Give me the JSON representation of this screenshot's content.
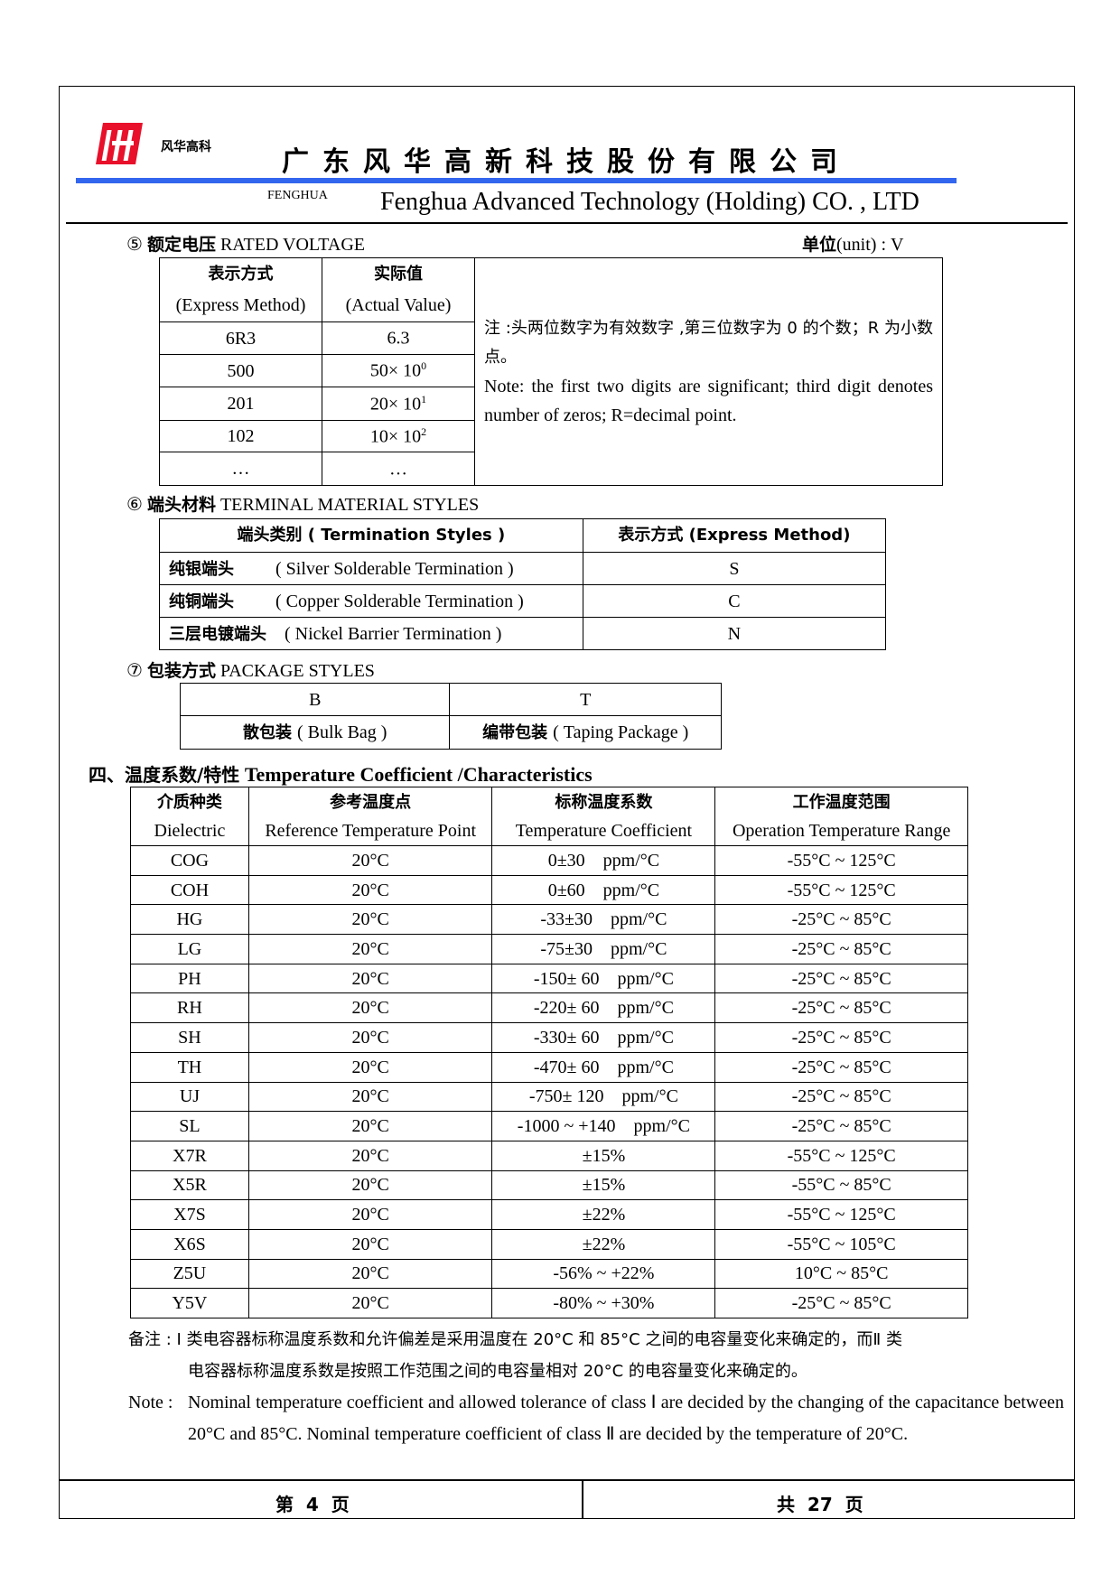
{
  "header": {
    "logo_text": "FH",
    "logo_cn": "风华高科",
    "company_cn": "广东风华高新科技股份有限公司",
    "brand": "FENGHUA",
    "company_en": "Fenghua Advanced Technology (Holding) CO. , LTD",
    "brand_color": "#e8102a",
    "bar_color": "#3366ee"
  },
  "rated_voltage": {
    "number": "⑤",
    "title_cn": "额定电压",
    "title_en": "RATED VOLTAGE",
    "unit_cn": "单位",
    "unit_en": "(unit) : V",
    "headers": [
      [
        "表示方式",
        "(Express Method)"
      ],
      [
        "实际值",
        "(Actual Value)"
      ]
    ],
    "rows": [
      [
        "6R3",
        "6.3",
        ""
      ],
      [
        "500",
        "50× 10",
        "0"
      ],
      [
        "201",
        "20× 10",
        "1"
      ],
      [
        "102",
        "10× 10",
        "2"
      ],
      [
        "…",
        "…",
        ""
      ]
    ],
    "note_cn": "注 :头两位数字为有效数字 ,第三位数字为 0 的个数；R 为小数点。",
    "note_en": "Note: the first two digits are significant; third digit denotes number of zeros; R=decimal point."
  },
  "terminal": {
    "number": "⑥",
    "title_cn": "端头材料",
    "title_en": "TERMINAL MATERIAL STYLES",
    "headers": [
      "端头类别 ( Termination Styles )",
      "表示方式 (Express Method)"
    ],
    "rows": [
      [
        "纯银端头",
        "( Silver Solderable Termination )",
        "S"
      ],
      [
        "纯铜端头",
        "( Copper Solderable Termination )",
        "C"
      ],
      [
        "三层电镀端头",
        "( Nickel Barrier Termination )",
        "N"
      ]
    ]
  },
  "package": {
    "number": "⑦",
    "title_cn": "包装方式",
    "title_en": "PACKAGE STYLES",
    "codes": [
      "B",
      "T"
    ],
    "labels": [
      [
        "散包装",
        "( Bulk Bag )"
      ],
      [
        "编带包装",
        "( Taping Package )"
      ]
    ]
  },
  "temp": {
    "title_cn": "四、温度系数/特性",
    "title_en": "Temperature Coefficient /Characteristics",
    "headers": [
      [
        "介质种类",
        "Dielectric"
      ],
      [
        "参考温度点",
        "Reference Temperature Point"
      ],
      [
        "标称温度系数",
        "Temperature Coefficient"
      ],
      [
        "工作温度范围",
        "Operation Temperature Range"
      ]
    ],
    "rows": [
      [
        "COG",
        "20°C",
        "0±30    ppm/°C",
        "-55°C ~ 125°C"
      ],
      [
        "COH",
        "20°C",
        "0±60    ppm/°C",
        "-55°C ~ 125°C"
      ],
      [
        "HG",
        "20°C",
        "-33±30    ppm/°C",
        "-25°C ~ 85°C"
      ],
      [
        "LG",
        "20°C",
        "-75±30    ppm/°C",
        "-25°C ~ 85°C"
      ],
      [
        "PH",
        "20°C",
        "-150± 60    ppm/°C",
        "-25°C ~ 85°C"
      ],
      [
        "RH",
        "20°C",
        "-220± 60    ppm/°C",
        "-25°C ~ 85°C"
      ],
      [
        "SH",
        "20°C",
        "-330± 60    ppm/°C",
        "-25°C ~ 85°C"
      ],
      [
        "TH",
        "20°C",
        "-470± 60    ppm/°C",
        "-25°C ~ 85°C"
      ],
      [
        "UJ",
        "20°C",
        "-750± 120    ppm/°C",
        "-25°C ~ 85°C"
      ],
      [
        "SL",
        "20°C",
        "-1000 ~ +140    ppm/°C",
        "-25°C ~ 85°C"
      ],
      [
        "X7R",
        "20°C",
        "±15%",
        "-55°C ~ 125°C"
      ],
      [
        "X5R",
        "20°C",
        "±15%",
        "-55°C ~ 85°C"
      ],
      [
        "X7S",
        "20°C",
        "±22%",
        "-55°C ~ 125°C"
      ],
      [
        "X6S",
        "20°C",
        "±22%",
        "-55°C ~ 105°C"
      ],
      [
        "Z5U",
        "20°C",
        "-56% ~ +22%",
        "10°C ~ 85°C"
      ],
      [
        "Y5V",
        "20°C",
        "-80% ~ +30%",
        "-25°C ~ 85°C"
      ]
    ]
  },
  "notes": {
    "cn_label": "备注 : ",
    "cn_line1": "Ⅰ 类电容器标称温度系数和允许偏差是采用温度在 20°C 和 85°C 之间的电容量变化来确定的，而Ⅱ 类",
    "cn_line2": "电容器标称温度系数是按照工作范围之间的电容量相对 20°C 的电容量变化来确定的。",
    "en_label": "Note : ",
    "en_text": "Nominal temperature coefficient and allowed tolerance of class Ⅰ are decided by the changing of the capacitance between 20°C and 85°C. Nominal temperature coefficient of class Ⅱ are decided by the temperature of 20°C."
  },
  "footer": {
    "page": "第  4  页",
    "total": "共  27  页"
  }
}
